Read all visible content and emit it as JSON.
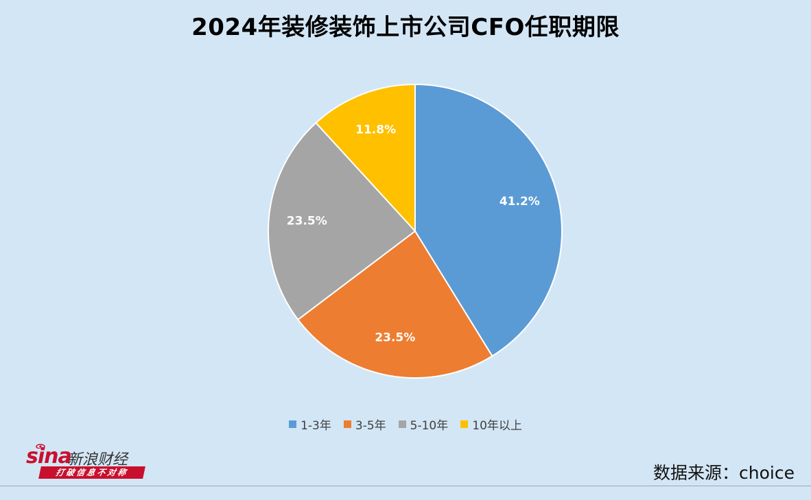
{
  "chart_data": {
    "type": "pie",
    "title": "2024年装修装饰上市公司CFO任职期限",
    "categories": [
      "1-3年",
      "3-5年",
      "5-10年",
      "10年以上"
    ],
    "values": [
      41.2,
      23.5,
      23.5,
      11.8
    ],
    "data_labels": [
      "41.2%",
      "23.5%",
      "23.5%",
      "11.8%"
    ],
    "colors": [
      "#5b9bd5",
      "#ed7d31",
      "#a5a5a5",
      "#ffc000"
    ],
    "legend_position": "bottom"
  },
  "branding": {
    "logo_main": "sina",
    "logo_cn": "新浪财经",
    "slogan": "打破信息不对称"
  },
  "source": "数据来源：choice"
}
